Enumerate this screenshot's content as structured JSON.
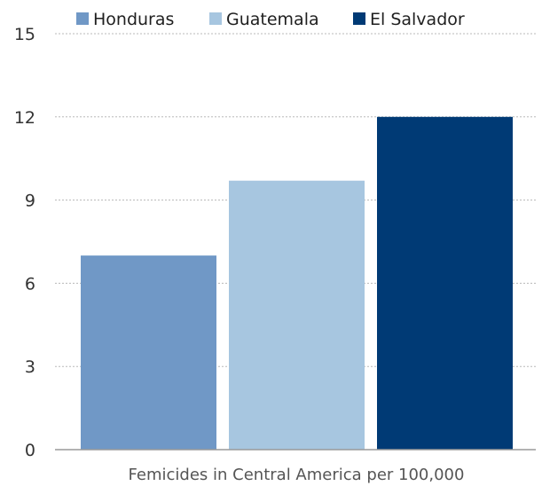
{
  "chart_data": {
    "type": "bar",
    "title": "",
    "xlabel": "Femicides in Central America per 100,000",
    "ylabel": "",
    "categories": [
      "Femicides in Central America per 100,000"
    ],
    "series": [
      {
        "name": "Honduras",
        "values": [
          7.0
        ],
        "color": "#7098c6"
      },
      {
        "name": "Guatemala",
        "values": [
          9.7
        ],
        "color": "#a7c6e0"
      },
      {
        "name": "El Salvador",
        "values": [
          12.0
        ],
        "color": "#003a75"
      }
    ],
    "ylim": [
      0,
      15
    ],
    "yticks": [
      "0",
      "3",
      "6",
      "9",
      "12",
      "15"
    ],
    "grid": true,
    "legend_position": "top"
  }
}
